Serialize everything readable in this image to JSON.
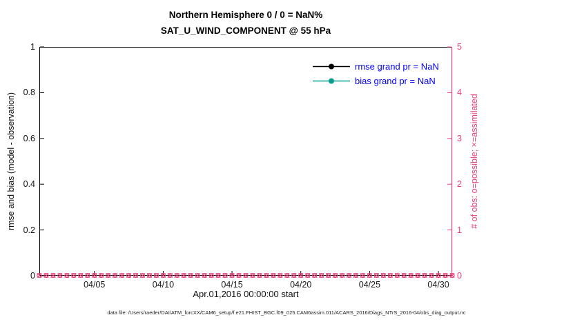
{
  "figure": {
    "background": "#ffffff"
  },
  "chart_data": {
    "type": "line",
    "title": "Northern Hemisphere 0 / 0 = NaN%",
    "subtitle": "SAT_U_WIND_COMPONENT @ 55 hPa",
    "xlabel": "Apr.01,2016 00:00:00 start",
    "left_axis": {
      "label": "rmse and bias (model - observation)",
      "lim": [
        0,
        1
      ],
      "ticks": [
        "0",
        "0.2",
        "0.4",
        "0.6",
        "0.8",
        "1"
      ],
      "color": "#000000"
    },
    "right_axis": {
      "label": "# of obs: o=possible; ×=assimilated",
      "lim": [
        0,
        5
      ],
      "ticks": [
        "0",
        "1",
        "2",
        "3",
        "4",
        "5"
      ],
      "color": "#e8407a"
    },
    "x_axis": {
      "lim_days": [
        1,
        31
      ],
      "tick_days": [
        5,
        10,
        15,
        20,
        25,
        30
      ],
      "tick_labels": [
        "04/05",
        "04/10",
        "04/15",
        "04/20",
        "04/25",
        "04/30"
      ]
    },
    "series": [
      {
        "name": "rmse grand pr = NaN",
        "color": "#000000",
        "values": []
      },
      {
        "name": "bias grand pr = NaN",
        "color": "#009e8e",
        "values": []
      }
    ],
    "legend_text_color": "#0000ff",
    "grid": false,
    "legend_position": "top-right-inside",
    "obs_counts": {
      "possible_marker": "o",
      "assimilated_marker": "x",
      "value": 0,
      "n_markers": 61
    }
  },
  "footer": {
    "text": "data file: /Users/raeder/DAI/ATM_forcXX/CAM6_setup/f.e21.FHIST_BGC.f09_025.CAM6assim.011/ACARS_2016/Diags_NTrS_2016-04/obs_diag_output.nc"
  }
}
